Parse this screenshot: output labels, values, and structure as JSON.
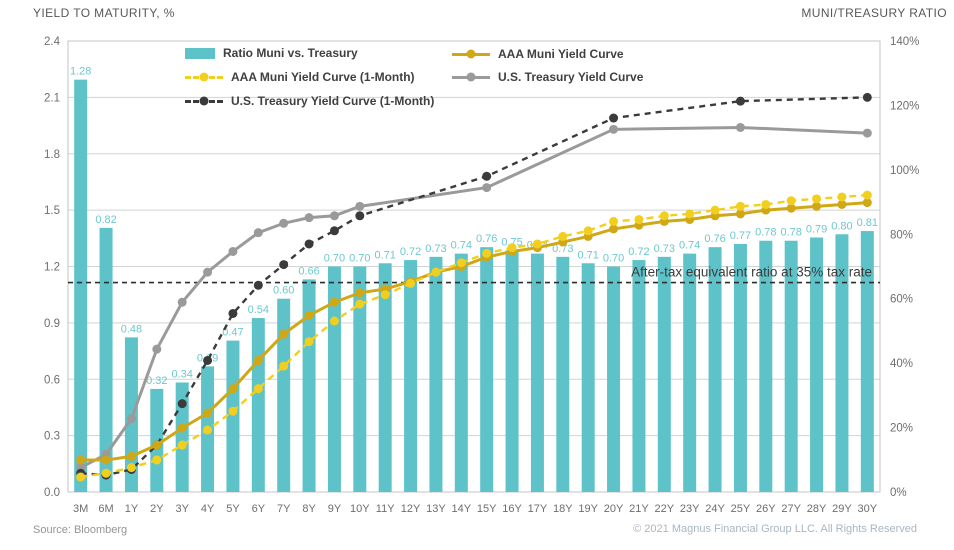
{
  "header": {
    "left_title": "YIELD TO MATURITY, %",
    "right_title": "MUNI/TREASURY RATIO"
  },
  "footer": {
    "source": "Source: Bloomberg",
    "copyright": "© 2021 Magnus Financial Group LLC. All Rights Reserved"
  },
  "colors": {
    "bar_teal": "#5dc3c9",
    "bar_label_teal": "#6cc8ce",
    "muni_gold": "#d0a816",
    "muni_1m_yellow": "#f2cf1f",
    "treasury_gray": "#9a9a9a",
    "treasury_1m_black": "#3b3b3b",
    "gridline": "#d2d3d4",
    "axis_text": "#6d6e71"
  },
  "legend": {
    "column1": [
      {
        "label": "Ratio Muni vs. Treasury",
        "swatch": "bar",
        "color": "#5dc3c9"
      },
      {
        "label": "AAA Muni Yield Curve (1-Month)",
        "swatch": "dashed-line",
        "color": "#f2cf1f"
      },
      {
        "label": "U.S. Treasury Yield Curve (1-Month)",
        "swatch": "dashed-line",
        "color": "#3b3b3b"
      }
    ],
    "column2": [
      {
        "label": "AAA Muni Yield Curve",
        "swatch": "solid-line",
        "color": "#d0a816"
      },
      {
        "label": "U.S. Treasury Yield Curve",
        "swatch": "solid-line",
        "color": "#9a9a9a"
      }
    ]
  },
  "chart_data": {
    "type": "bar",
    "subtype": "combo-bar-line",
    "categories": [
      "3M",
      "6M",
      "1Y",
      "2Y",
      "3Y",
      "4Y",
      "5Y",
      "6Y",
      "7Y",
      "8Y",
      "9Y",
      "10Y",
      "11Y",
      "12Y",
      "13Y",
      "14Y",
      "15Y",
      "16Y",
      "17Y",
      "18Y",
      "19Y",
      "20Y",
      "21Y",
      "22Y",
      "23Y",
      "24Y",
      "25Y",
      "26Y",
      "27Y",
      "28Y",
      "29Y",
      "30Y"
    ],
    "left_axis": {
      "label": "YIELD TO MATURITY, %",
      "min": 0.0,
      "max": 2.4,
      "ticks": [
        0,
        0.3,
        0.6,
        0.9,
        1.2,
        1.5,
        1.8,
        2.1,
        2.4
      ]
    },
    "right_axis": {
      "label": "MUNI/TREASURY RATIO",
      "min": 0,
      "max": 140,
      "ticks": [
        0,
        20,
        40,
        60,
        80,
        100,
        120,
        140
      ]
    },
    "grid": true,
    "legend_position": "top-inside",
    "bars": {
      "name": "Ratio Muni vs. Treasury",
      "axis": "right",
      "color": "#5dc3c9",
      "label_color": "#6cc8ce",
      "values": [
        1.28,
        0.82,
        0.48,
        0.32,
        0.34,
        0.39,
        0.47,
        0.54,
        0.6,
        0.66,
        0.7,
        0.7,
        0.71,
        0.72,
        0.73,
        0.74,
        0.76,
        0.75,
        0.74,
        0.73,
        0.71,
        0.7,
        0.72,
        0.73,
        0.74,
        0.76,
        0.77,
        0.78,
        0.78,
        0.79,
        0.8,
        0.81
      ]
    },
    "series": [
      {
        "name": "U.S. Treasury Yield Curve",
        "axis": "left",
        "style": "solid",
        "color": "#9a9a9a",
        "width": 3,
        "marker_r": 4.5,
        "indices": [
          0,
          1,
          2,
          3,
          4,
          5,
          6,
          7,
          8,
          9,
          10,
          11,
          16,
          21,
          26,
          31
        ],
        "values": [
          0.13,
          0.2,
          0.39,
          0.76,
          1.01,
          1.17,
          1.28,
          1.38,
          1.43,
          1.46,
          1.47,
          1.52,
          1.62,
          1.93,
          1.94,
          1.91
        ]
      },
      {
        "name": "U.S. Treasury Yield Curve (1-Month)",
        "axis": "left",
        "style": "dashed",
        "color": "#3b3b3b",
        "width": 2.4,
        "dash": "6 5",
        "marker_r": 4.5,
        "indices": [
          0,
          1,
          2,
          3,
          4,
          5,
          6,
          7,
          8,
          9,
          10,
          11,
          16,
          21,
          26,
          31
        ],
        "values": [
          0.1,
          0.09,
          0.12,
          0.25,
          0.47,
          0.7,
          0.95,
          1.1,
          1.21,
          1.32,
          1.39,
          1.47,
          1.68,
          1.99,
          2.08,
          2.1
        ]
      },
      {
        "name": "AAA Muni Yield Curve",
        "axis": "left",
        "style": "solid",
        "color": "#d0a816",
        "width": 3,
        "marker_r": 4.5,
        "values": [
          0.17,
          0.17,
          0.19,
          0.25,
          0.34,
          0.42,
          0.55,
          0.7,
          0.84,
          0.94,
          1.01,
          1.06,
          1.08,
          1.12,
          1.17,
          1.2,
          1.25,
          1.28,
          1.3,
          1.33,
          1.36,
          1.4,
          1.42,
          1.44,
          1.45,
          1.47,
          1.48,
          1.5,
          1.51,
          1.52,
          1.53,
          1.54
        ]
      },
      {
        "name": "AAA Muni Yield Curve (1-Month)",
        "axis": "left",
        "style": "dashed",
        "color": "#f2cf1f",
        "width": 2.4,
        "dash": "7 5",
        "marker_r": 4.5,
        "values": [
          0.08,
          0.1,
          0.13,
          0.17,
          0.25,
          0.33,
          0.43,
          0.55,
          0.67,
          0.8,
          0.91,
          1.0,
          1.05,
          1.11,
          1.17,
          1.22,
          1.27,
          1.3,
          1.32,
          1.36,
          1.39,
          1.44,
          1.45,
          1.47,
          1.48,
          1.5,
          1.52,
          1.53,
          1.55,
          1.56,
          1.57,
          1.58
        ]
      }
    ],
    "reference_line": {
      "label": "After-tax equivalent ratio at 35% tax rate",
      "axis": "right",
      "value": 65
    }
  }
}
